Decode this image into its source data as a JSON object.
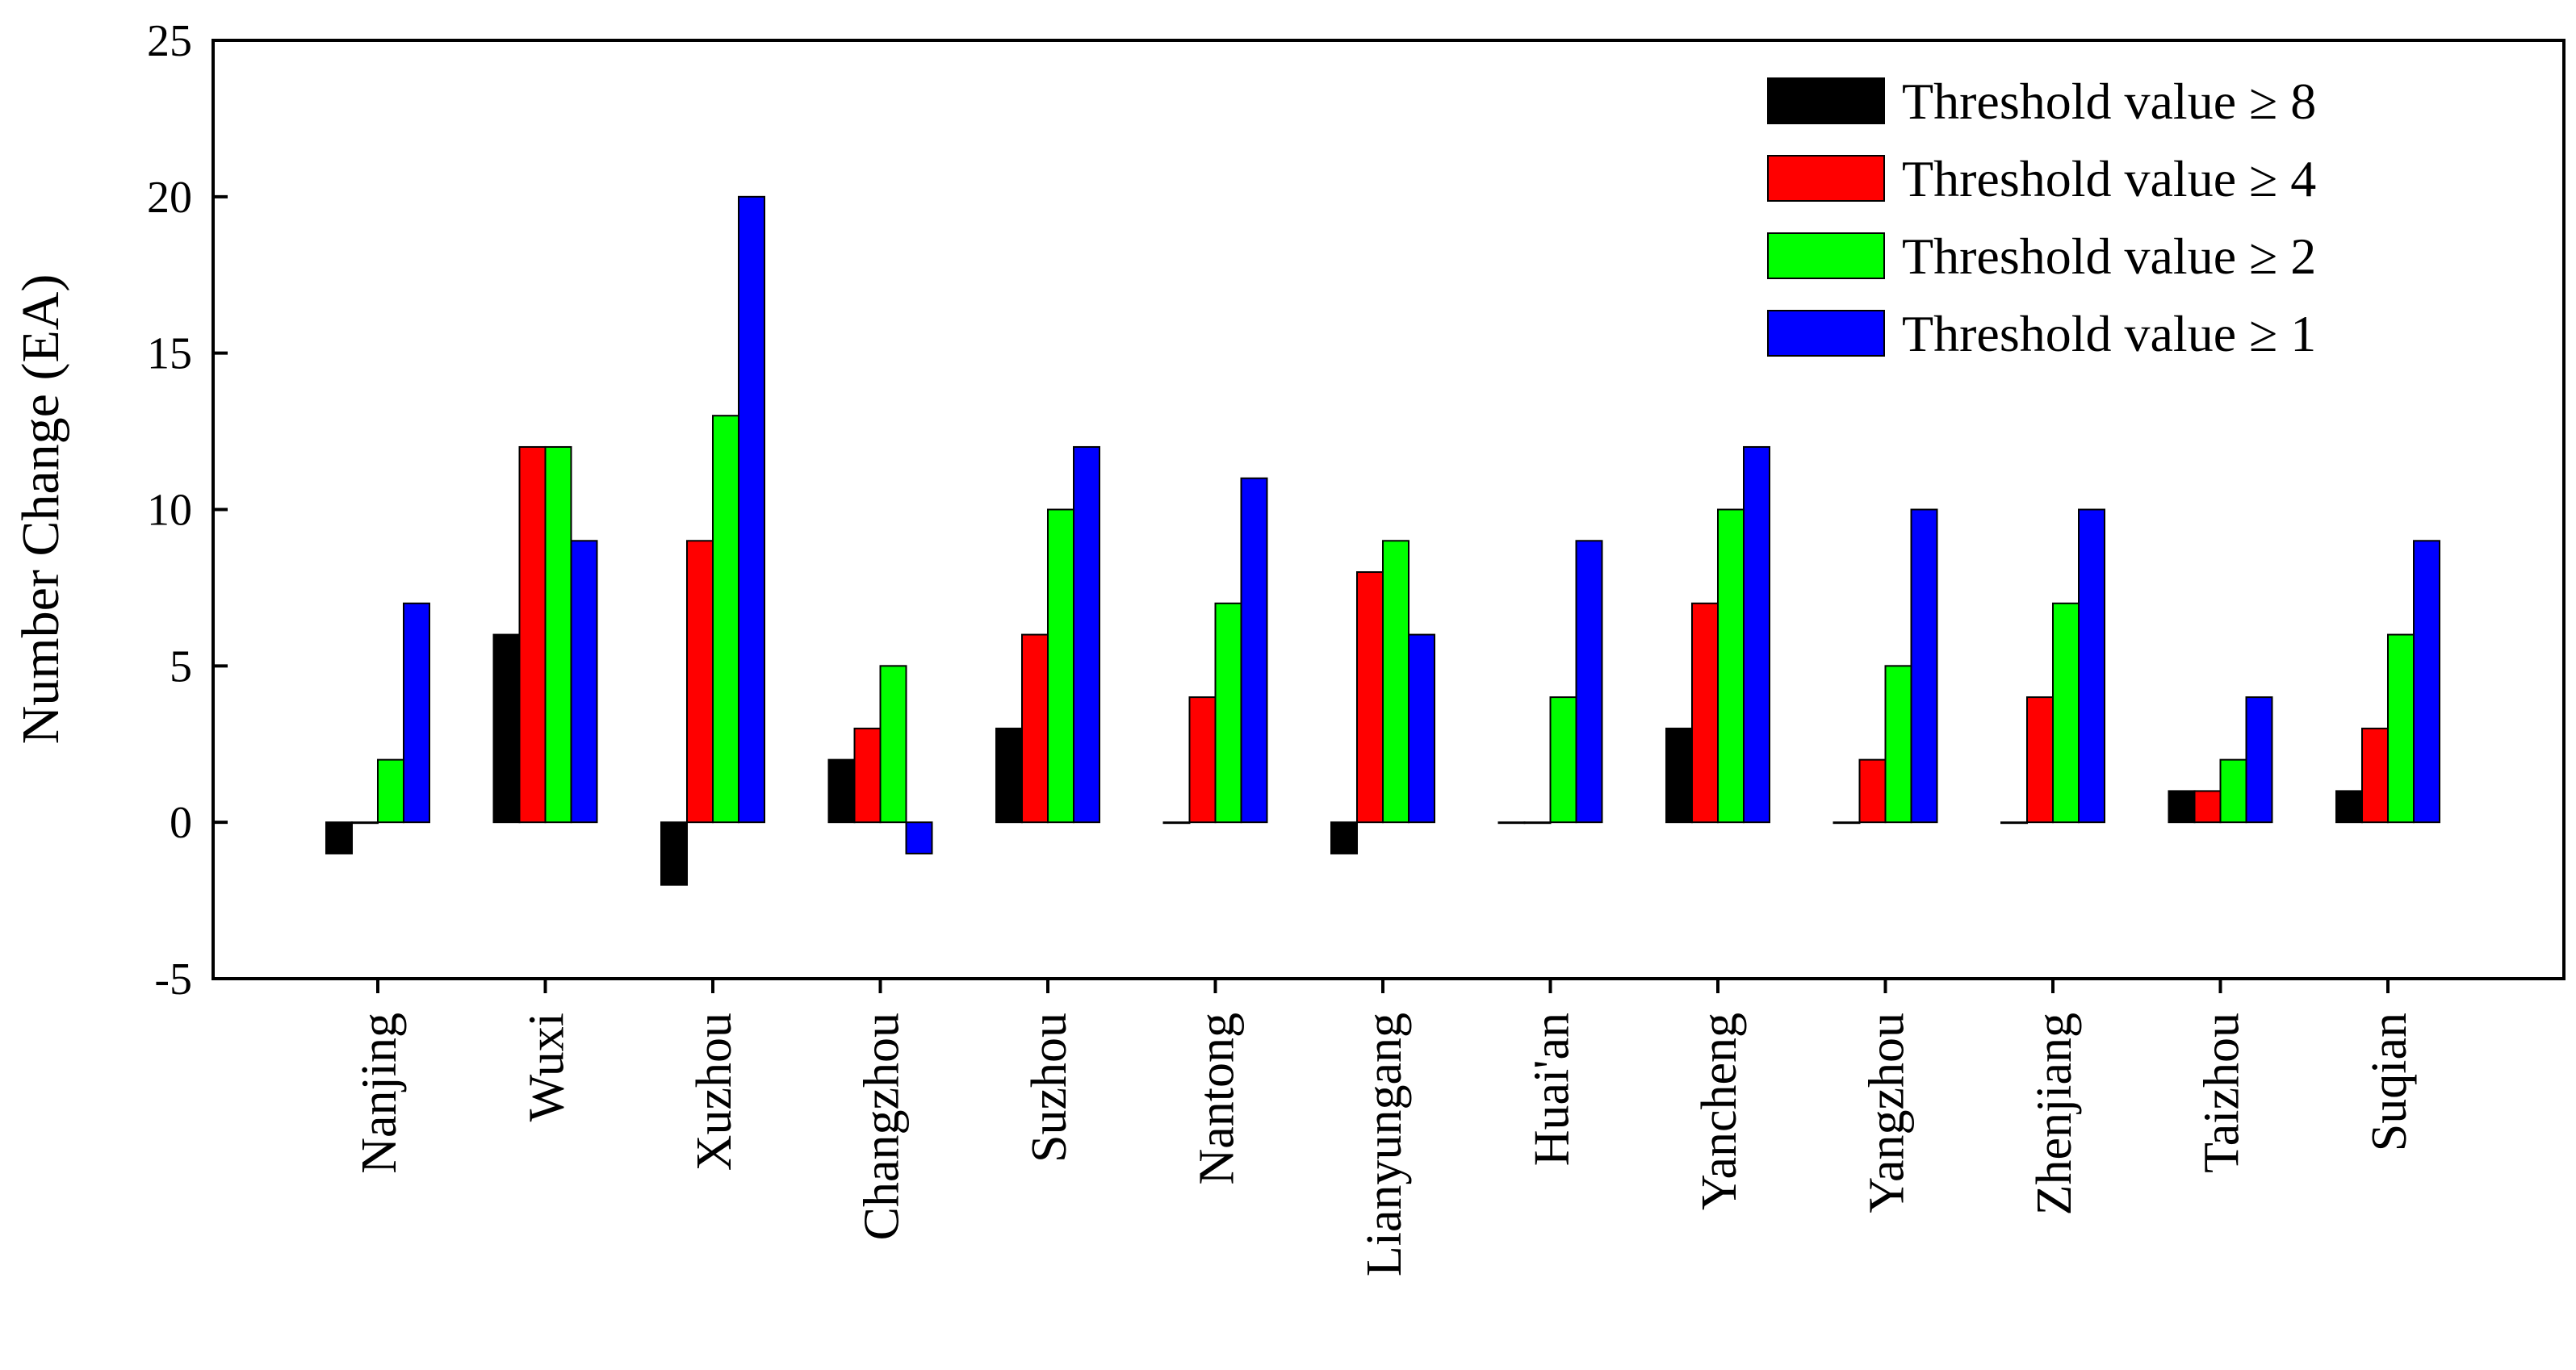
{
  "chart_data": {
    "type": "bar",
    "title": "",
    "xlabel": "",
    "ylabel": "Number Change (EA)",
    "ylim": [
      -5,
      25
    ],
    "yticks": [
      -5,
      0,
      5,
      10,
      15,
      20,
      25
    ],
    "grid": false,
    "legend_position": "top-right",
    "categories": [
      "Nanjing",
      "Wuxi",
      "Xuzhou",
      "Changzhou",
      "Suzhou",
      "Nantong",
      "Lianyungang",
      "Huai'an",
      "Yancheng",
      "Yangzhou",
      "Zhenjiang",
      "Taizhou",
      "Suqian"
    ],
    "series": [
      {
        "name": "Threshold value ≥ 8",
        "color": "#000000",
        "values": [
          -1,
          6,
          -2,
          2,
          3,
          0,
          -1,
          0,
          3,
          0,
          0,
          1,
          1
        ]
      },
      {
        "name": "Threshold value ≥ 4",
        "color": "#ff0000",
        "values": [
          0,
          12,
          9,
          3,
          6,
          4,
          8,
          0,
          7,
          2,
          4,
          1,
          3
        ]
      },
      {
        "name": "Threshold value ≥ 2",
        "color": "#00ff00",
        "values": [
          2,
          12,
          13,
          5,
          10,
          7,
          9,
          4,
          10,
          5,
          7,
          2,
          6
        ]
      },
      {
        "name": "Threshold value ≥ 1",
        "color": "#0000ff",
        "values": [
          7,
          9,
          20,
          -1,
          12,
          11,
          6,
          9,
          12,
          10,
          10,
          4,
          9
        ]
      }
    ]
  }
}
